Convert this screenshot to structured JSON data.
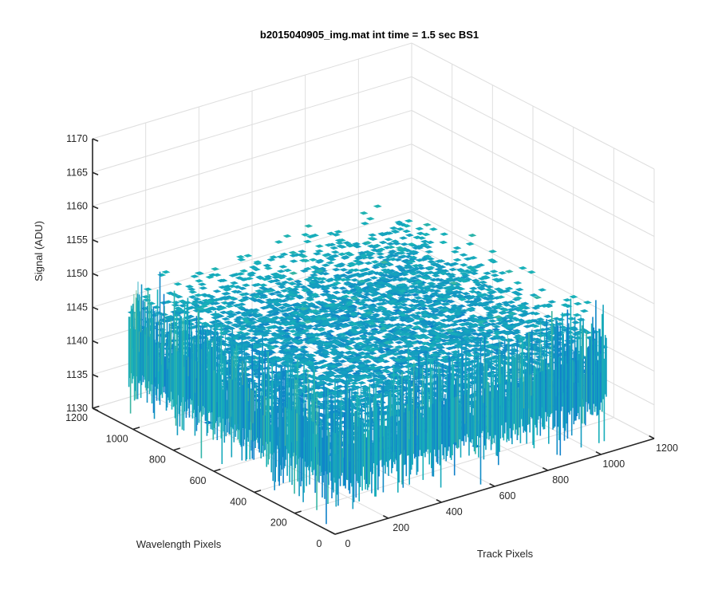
{
  "chart_data": {
    "type": "surface",
    "title": "b2015040905_img.mat int time = 1.5 sec   BS1",
    "xlabel": "Track Pixels",
    "ylabel": "Wavelength Pixels",
    "zlabel": "Signal (ADU)",
    "xlim": [
      0,
      1200
    ],
    "ylim": [
      0,
      1200
    ],
    "zlim": [
      1130,
      1170
    ],
    "x_ticks": [
      "0",
      "200",
      "400",
      "600",
      "800",
      "1000",
      "1200"
    ],
    "y_ticks": [
      "0",
      "200",
      "400",
      "600",
      "800",
      "1000",
      "1200"
    ],
    "z_ticks": [
      "1130",
      "1135",
      "1140",
      "1145",
      "1150",
      "1155",
      "1160",
      "1165",
      "1170"
    ],
    "surface_extent": {
      "x": [
        0,
        1024
      ],
      "y": [
        0,
        1024
      ]
    },
    "signal_mean": 1145,
    "signal_spread": [
      1135,
      1165
    ],
    "grid": true,
    "colormap": "parula",
    "colors": {
      "low": "#0d72cf",
      "mid": "#18b2b8",
      "high": "#c8c244"
    }
  }
}
